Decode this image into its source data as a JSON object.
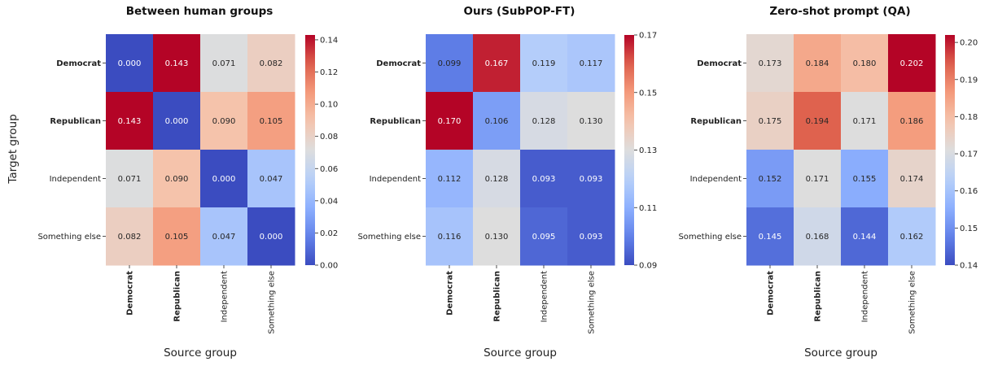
{
  "figure": {
    "ylabel": "Target group"
  },
  "chart_data": [
    {
      "type": "heatmap",
      "title": "Between human groups",
      "xlabel": "Source group",
      "rows": [
        "Democrat",
        "Republican",
        "Independent",
        "Something else"
      ],
      "columns": [
        "Democrat",
        "Republican",
        "Independent",
        "Something else"
      ],
      "bold_labels": [
        "Democrat",
        "Republican"
      ],
      "values": [
        [
          0.0,
          0.143,
          0.071,
          0.082
        ],
        [
          0.143,
          0.0,
          0.09,
          0.105
        ],
        [
          0.071,
          0.09,
          0.0,
          0.047
        ],
        [
          0.082,
          0.105,
          0.047,
          0.0
        ]
      ],
      "value_labels": [
        [
          "0.000",
          "0.143",
          "0.071",
          "0.082"
        ],
        [
          "0.143",
          "0.000",
          "0.090",
          "0.105"
        ],
        [
          "0.071",
          "0.090",
          "0.000",
          "0.047"
        ],
        [
          "0.082",
          "0.105",
          "0.047",
          "0.000"
        ]
      ],
      "colormap": "coolwarm",
      "vmin": 0.0,
      "vmax": 0.143,
      "colorbar_ticks": [
        0.0,
        0.02,
        0.04,
        0.06,
        0.08,
        0.1,
        0.12,
        0.14
      ],
      "colorbar_tick_labels": [
        "0.00",
        "0.02",
        "0.04",
        "0.06",
        "0.08",
        "0.10",
        "0.12",
        "0.14"
      ]
    },
    {
      "type": "heatmap",
      "title": "Ours (SubPOP-FT)",
      "xlabel": "Source group",
      "rows": [
        "Democrat",
        "Republican",
        "Independent",
        "Something else"
      ],
      "columns": [
        "Democrat",
        "Republican",
        "Independent",
        "Something else"
      ],
      "bold_labels": [
        "Democrat",
        "Republican"
      ],
      "values": [
        [
          0.099,
          0.167,
          0.119,
          0.117
        ],
        [
          0.17,
          0.106,
          0.128,
          0.13
        ],
        [
          0.112,
          0.128,
          0.093,
          0.093
        ],
        [
          0.116,
          0.13,
          0.095,
          0.093
        ]
      ],
      "value_labels": [
        [
          "0.099",
          "0.167",
          "0.119",
          "0.117"
        ],
        [
          "0.170",
          "0.106",
          "0.128",
          "0.130"
        ],
        [
          "0.112",
          "0.128",
          "0.093",
          "0.093"
        ],
        [
          "0.116",
          "0.130",
          "0.095",
          "0.093"
        ]
      ],
      "colormap": "coolwarm",
      "vmin": 0.09,
      "vmax": 0.17,
      "colorbar_ticks": [
        0.09,
        0.11,
        0.13,
        0.15,
        0.17
      ],
      "colorbar_tick_labels": [
        "0.09",
        "0.11",
        "0.13",
        "0.15",
        "0.17"
      ]
    },
    {
      "type": "heatmap",
      "title": "Zero-shot prompt (QA)",
      "xlabel": "Source group",
      "rows": [
        "Democrat",
        "Republican",
        "Independent",
        "Something else"
      ],
      "columns": [
        "Democrat",
        "Republican",
        "Independent",
        "Something else"
      ],
      "bold_labels": [
        "Democrat",
        "Republican"
      ],
      "values": [
        [
          0.173,
          0.184,
          0.18,
          0.202
        ],
        [
          0.175,
          0.194,
          0.171,
          0.186
        ],
        [
          0.152,
          0.171,
          0.155,
          0.174
        ],
        [
          0.145,
          0.168,
          0.144,
          0.162
        ]
      ],
      "value_labels": [
        [
          "0.173",
          "0.184",
          "0.180",
          "0.202"
        ],
        [
          "0.175",
          "0.194",
          "0.171",
          "0.186"
        ],
        [
          "0.152",
          "0.171",
          "0.155",
          "0.174"
        ],
        [
          "0.145",
          "0.168",
          "0.144",
          "0.162"
        ]
      ],
      "colormap": "coolwarm",
      "vmin": 0.14,
      "vmax": 0.202,
      "colorbar_ticks": [
        0.14,
        0.15,
        0.16,
        0.17,
        0.18,
        0.19,
        0.2
      ],
      "colorbar_tick_labels": [
        "0.14",
        "0.15",
        "0.16",
        "0.17",
        "0.18",
        "0.19",
        "0.20"
      ]
    }
  ]
}
